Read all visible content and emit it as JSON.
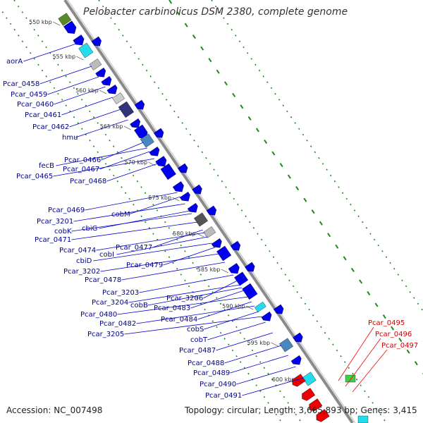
{
  "title": "Pelobacter carbinolicus DSM 2380, complete genome",
  "footer": {
    "accession": "Accession: NC_007498",
    "topology": "Topology: circular; Length: 3,665,893 bp; Genes: 3,415"
  },
  "colors": {
    "forward_gene": "#0000ee",
    "reverse_gene": "#ee0000",
    "tick_green": "#1a8c1a",
    "backbone": "#8a8a8a",
    "label_blue": "#00008b",
    "label_red": "#cc0000"
  },
  "kbp_ticks": [
    "550 kbp",
    "555 kbp",
    "560 kbp",
    "565 kbp",
    "570 kbp",
    "575 kbp",
    "580 kbp",
    "585 kbp",
    "590 kbp",
    "595 kbp",
    "600 kbp"
  ],
  "gene_labels": [
    "aorA",
    "Pcar_0458",
    "Pcar_0459",
    "Pcar_0460",
    "Pcar_0461",
    "Pcar_0462",
    "hmu",
    "fecB",
    "Pcar_0466",
    "Pcar_0467",
    "Pcar_0465",
    "Pcar_0468",
    "Pcar_0469",
    "cobM",
    "Pcar_3201",
    "cbiG",
    "cobK",
    "Pcar_0471",
    "Pcar_0477",
    "Pcar_0474",
    "cobI",
    "cbiD",
    "Pcar_0479",
    "Pcar_3202",
    "Pcar_0478",
    "Pcar_3203",
    "Pcar_3206",
    "Pcar_3204",
    "cobB",
    "Pcar_0483",
    "Pcar_0480",
    "Pcar_0484",
    "Pcar_0482",
    "Pcar_3205",
    "cobS",
    "cobT",
    "Pcar_0487",
    "Pcar_0488",
    "Pcar_0489",
    "Pcar_0490",
    "Pcar_0491"
  ],
  "gene_labels_reverse": [
    "Pcar_0495",
    "Pcar_0496",
    "Pcar_0497"
  ]
}
